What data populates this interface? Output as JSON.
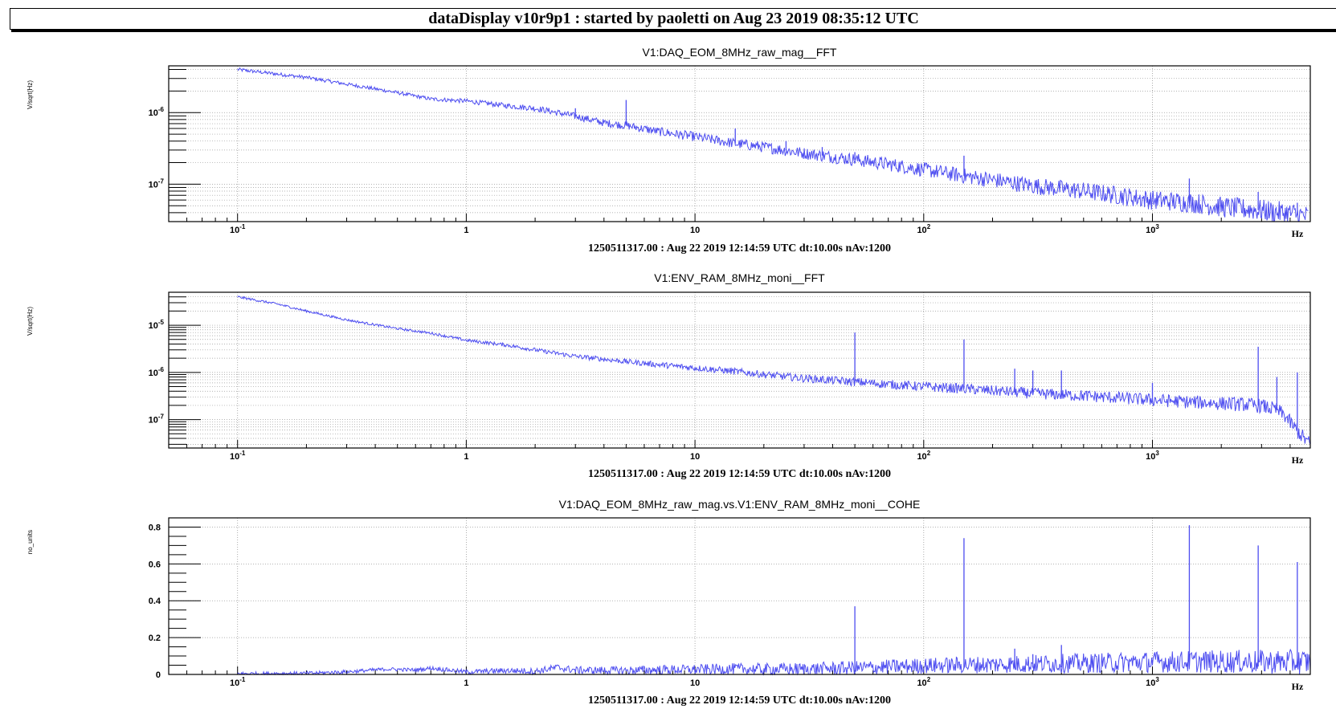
{
  "header": {
    "title": "dataDisplay v10r9p1 : started by paoletti on Aug 23 2019 08:35:12 UTC"
  },
  "colors": {
    "trace": "#4d4df0",
    "grid": "#9a9a9a",
    "frame": "#000000"
  },
  "chart_data": [
    {
      "type": "line",
      "title": "V1:DAQ_EOM_8MHz_raw_mag__FFT",
      "subtitle": "1250511317.00 : Aug 22 2019 12:14:59 UTC dt:10.00s nAv:1200",
      "xlabel": "Hz",
      "ylabel": "V/sqrt(Hz)",
      "xscale": "log",
      "yscale": "log",
      "xlim": [
        0.05,
        4900
      ],
      "ylim": [
        3e-08,
        4.5e-06
      ],
      "xticks": [
        {
          "base": "10",
          "exp": "-1"
        },
        {
          "base": "1",
          "exp": ""
        },
        {
          "base": "10",
          "exp": ""
        },
        {
          "base": "10",
          "exp": "2"
        },
        {
          "base": "10",
          "exp": "3"
        }
      ],
      "yticks": [
        {
          "base": "10",
          "exp": "-6"
        },
        {
          "base": "10",
          "exp": "-7"
        }
      ],
      "series": [
        {
          "x": [
            0.1,
            0.2,
            0.3,
            0.5,
            0.7,
            1,
            1.5,
            2,
            3,
            4,
            5,
            7,
            10,
            15,
            20,
            30,
            50,
            70,
            100,
            150,
            200,
            300,
            500,
            700,
            1000,
            1500,
            2000,
            3000,
            4000,
            4800
          ],
          "y": [
            4e-06,
            3.1e-06,
            2.5e-06,
            1.9e-06,
            1.55e-06,
            1.45e-06,
            1.25e-06,
            1.15e-06,
            8.9e-07,
            7.2e-07,
            6.6e-07,
            5.4e-07,
            4.6e-07,
            3.7e-07,
            3.3e-07,
            2.7e-07,
            2.2e-07,
            1.9e-07,
            1.6e-07,
            1.3e-07,
            1.15e-07,
            9.5e-08,
            8e-08,
            7e-08,
            6e-08,
            5.5e-08,
            4.8e-08,
            4.3e-08,
            3.9e-08,
            3.5e-08
          ]
        }
      ],
      "peaks": [
        {
          "x": 3.0,
          "y": 1.15e-06
        },
        {
          "x": 5.0,
          "y": 1.5e-06
        },
        {
          "x": 15.0,
          "y": 6e-07
        },
        {
          "x": 25.0,
          "y": 4e-07
        },
        {
          "x": 36.0,
          "y": 3.3e-07
        },
        {
          "x": 50.0,
          "y": 2.8e-07
        },
        {
          "x": 150.0,
          "y": 2.5e-07
        },
        {
          "x": 1450.0,
          "y": 1.2e-07
        },
        {
          "x": 2900.0,
          "y": 7.8e-08
        },
        {
          "x": 4300.0,
          "y": 5.5e-08
        }
      ]
    },
    {
      "type": "line",
      "title": "V1:ENV_RAM_8MHz_moni__FFT",
      "subtitle": "1250511317.00 : Aug 22 2019 12:14:59 UTC dt:10.00s nAv:1200",
      "xlabel": "Hz",
      "ylabel": "V/sqrt(Hz)",
      "xscale": "log",
      "yscale": "log",
      "xlim": [
        0.05,
        4900
      ],
      "ylim": [
        2.5e-08,
        5e-05
      ],
      "xticks": [
        {
          "base": "10",
          "exp": "-1"
        },
        {
          "base": "1",
          "exp": ""
        },
        {
          "base": "10",
          "exp": ""
        },
        {
          "base": "10",
          "exp": "2"
        },
        {
          "base": "10",
          "exp": "3"
        }
      ],
      "yticks": [
        {
          "base": "10",
          "exp": "-5"
        },
        {
          "base": "10",
          "exp": "-6"
        },
        {
          "base": "10",
          "exp": "-7"
        }
      ],
      "series": [
        {
          "x": [
            0.1,
            0.15,
            0.2,
            0.3,
            0.5,
            0.7,
            1,
            1.5,
            2,
            3,
            5,
            7,
            10,
            15,
            20,
            30,
            50,
            70,
            100,
            150,
            200,
            300,
            500,
            700,
            1000,
            1500,
            2000,
            2500,
            3000,
            3500,
            3800,
            4200,
            4600,
            4900
          ],
          "y": [
            4e-05,
            2.8e-05,
            2e-05,
            1.3e-05,
            8.5e-06,
            6.8e-06,
            4.8e-06,
            3.8e-06,
            3e-06,
            2.2e-06,
            1.7e-06,
            1.45e-06,
            1.25e-06,
            1.05e-06,
            9e-07,
            7.5e-07,
            6.3e-07,
            5.6e-07,
            5e-07,
            4.5e-07,
            4.1e-07,
            3.6e-07,
            3.2e-07,
            2.9e-07,
            2.6e-07,
            2.35e-07,
            2.2e-07,
            2.1e-07,
            1.95e-07,
            1.6e-07,
            1.2e-07,
            6.5e-08,
            4e-08,
            3e-08
          ]
        }
      ],
      "peaks": [
        {
          "x": 50.0,
          "y": 7e-06
        },
        {
          "x": 150.0,
          "y": 5e-06
        },
        {
          "x": 250.0,
          "y": 1.2e-06
        },
        {
          "x": 300.0,
          "y": 1.1e-06
        },
        {
          "x": 400.0,
          "y": 1.1e-06
        },
        {
          "x": 1000.0,
          "y": 6e-07
        },
        {
          "x": 2900.0,
          "y": 3.5e-06
        },
        {
          "x": 3500.0,
          "y": 8e-07
        },
        {
          "x": 4300.0,
          "y": 1e-06
        }
      ]
    },
    {
      "type": "line",
      "title": "V1:DAQ_EOM_8MHz_raw_mag.vs.V1:ENV_RAM_8MHz_moni__COHE",
      "subtitle": "1250511317.00 : Aug 22 2019 12:14:59 UTC dt:10.00s nAv:1200",
      "xlabel": "Hz",
      "ylabel": "no_units",
      "xscale": "log",
      "yscale": "linear",
      "xlim": [
        0.05,
        4900
      ],
      "ylim": [
        0,
        0.85
      ],
      "xticks": [
        {
          "base": "10",
          "exp": "-1"
        },
        {
          "base": "1",
          "exp": ""
        },
        {
          "base": "10",
          "exp": ""
        },
        {
          "base": "10",
          "exp": "2"
        },
        {
          "base": "10",
          "exp": "3"
        }
      ],
      "yticks": [
        {
          "base": "0",
          "exp": ""
        },
        {
          "base": "0.2",
          "exp": ""
        },
        {
          "base": "0.4",
          "exp": ""
        },
        {
          "base": "0.6",
          "exp": ""
        },
        {
          "base": "0.8",
          "exp": ""
        }
      ],
      "series": [
        {
          "x": [
            0.1,
            0.2,
            0.3,
            0.45,
            0.6,
            0.7,
            0.8,
            1,
            1.5,
            2,
            2.5,
            3,
            5,
            7,
            10,
            15,
            20,
            30,
            50,
            100,
            200,
            500,
            1000,
            2000,
            4900
          ],
          "y": [
            0.0,
            0.002,
            0.01,
            0.025,
            0.02,
            0.03,
            0.022,
            0.008,
            0.015,
            0.01,
            0.03,
            0.015,
            0.012,
            0.015,
            0.015,
            0.018,
            0.015,
            0.015,
            0.02,
            0.03,
            0.035,
            0.04,
            0.045,
            0.045,
            0.04
          ]
        }
      ],
      "peaks": [
        {
          "x": 50.0,
          "y": 0.37
        },
        {
          "x": 150.0,
          "y": 0.74
        },
        {
          "x": 250.0,
          "y": 0.14
        },
        {
          "x": 300.0,
          "y": 0.11
        },
        {
          "x": 400.0,
          "y": 0.16
        },
        {
          "x": 1450.0,
          "y": 0.81
        },
        {
          "x": 2900.0,
          "y": 0.7
        },
        {
          "x": 4300.0,
          "y": 0.61
        }
      ]
    }
  ]
}
